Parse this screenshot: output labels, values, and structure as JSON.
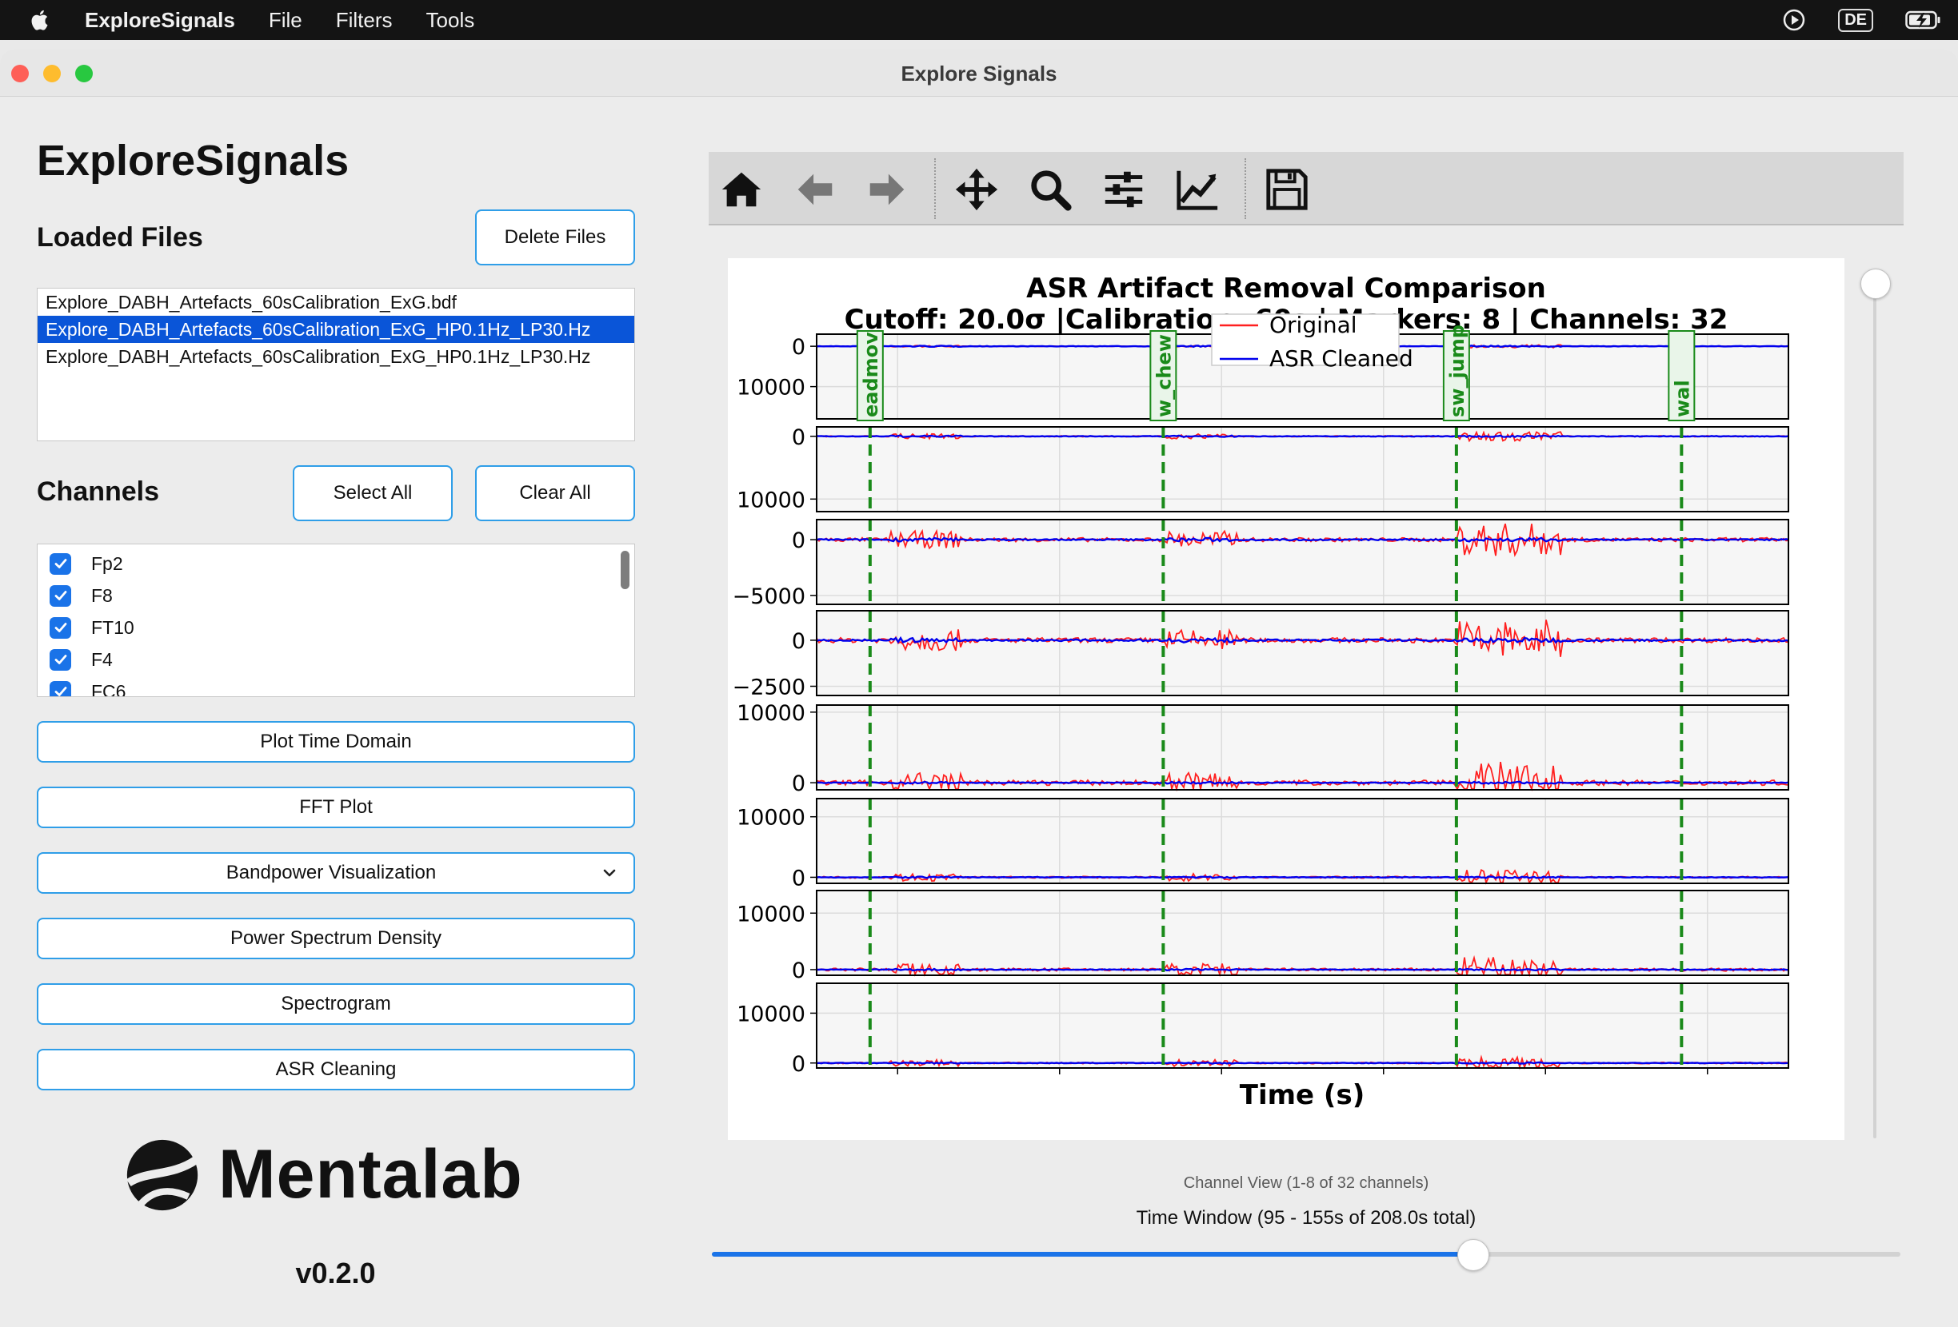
{
  "menubar": {
    "app_name": "ExploreSignals",
    "items": [
      "File",
      "Filters",
      "Tools"
    ],
    "lang": "DE"
  },
  "window": {
    "title": "Explore Signals"
  },
  "app_title": "ExploreSignals",
  "loaded_files": {
    "title": "Loaded Files",
    "delete_label": "Delete Files",
    "files": [
      "Explore_DABH_Artefacts_60sCalibration_ExG.bdf",
      "Explore_DABH_Artefacts_60sCalibration_ExG_HP0.1Hz_LP30.Hz",
      "Explore_DABH_Artefacts_60sCalibration_ExG_HP0.1Hz_LP30.Hz"
    ],
    "selected_index": 1
  },
  "channels": {
    "title": "Channels",
    "select_all_label": "Select All",
    "clear_all_label": "Clear All",
    "items": [
      "Fp2",
      "F8",
      "FT10",
      "F4",
      "FC6"
    ]
  },
  "actions": {
    "plot_time_domain": "Plot Time Domain",
    "fft_plot": "FFT Plot",
    "bandpower": "Bandpower Visualization",
    "psd": "Power Spectrum Density",
    "spectrogram": "Spectrogram",
    "asr_cleaning": "ASR Cleaning"
  },
  "brand": {
    "logo_text": "Mentalab",
    "version": "v0.2.0"
  },
  "toolbar": {
    "icons": [
      "home-icon",
      "back-arrow-icon",
      "forward-arrow-icon",
      "pan-icon",
      "zoom-icon",
      "subplots-config-icon",
      "edit-axis-icon",
      "save-icon"
    ]
  },
  "footer": {
    "channel_view": "Channel View (1-8 of 32 channels)",
    "time_window": "Time Window (95 - 155s of 208.0s total)",
    "time_slider_fraction": 0.64
  },
  "colors": {
    "accent": "#1a73e8",
    "original": "#ff2020",
    "cleaned": "#0000ee",
    "marker": "#1a8a1a"
  },
  "chart_data": {
    "type": "line",
    "title": "ASR Artifact Removal Comparison",
    "subtitle": "Cutoff: 20.0σ |Calibration: 60s | Markers: 8 | Channels: 32",
    "xlabel": "Time (s)",
    "xlim": [
      95,
      155
    ],
    "grid": true,
    "legend": {
      "placement": "top-right",
      "entries": [
        "Original",
        "ASR Cleaned"
      ]
    },
    "markers": [
      {
        "label": "eadmov",
        "x": 98.3
      },
      {
        "label": "w_chew",
        "x": 116.4
      },
      {
        "label": "sw_jump",
        "x": 134.5
      },
      {
        "label": "wal",
        "x": 148.4
      }
    ],
    "panels": [
      {
        "yticks": [
          "0",
          "10000"
        ],
        "ylim": [
          18000,
          -3000
        ],
        "tick_values": [
          0,
          10000
        ],
        "amp_orig": 150,
        "amp_clean": 150
      },
      {
        "yticks": [
          "0",
          "10000"
        ],
        "ylim": [
          12000,
          -1500
        ],
        "tick_values": [
          0,
          10000
        ],
        "amp_orig": 300,
        "amp_clean": 120
      },
      {
        "yticks": [
          "0",
          "−5000"
        ],
        "ylim": [
          -5800,
          1800
        ],
        "tick_values": [
          0,
          -5000
        ],
        "amp_orig": 600,
        "amp_clean": 160
      },
      {
        "yticks": [
          "0",
          "−2500"
        ],
        "ylim": [
          -3000,
          1600
        ],
        "tick_values": [
          0,
          -2500
        ],
        "amp_orig": 450,
        "amp_clean": 120
      },
      {
        "yticks": [
          "10000",
          "0"
        ],
        "ylim": [
          -1000,
          11000
        ],
        "tick_values": [
          10000,
          0
        ],
        "amp_orig": 1200,
        "amp_clean": 140
      },
      {
        "yticks": [
          "10000",
          "0"
        ],
        "ylim": [
          -1000,
          13000
        ],
        "tick_values": [
          10000,
          0
        ],
        "amp_orig": 500,
        "amp_clean": 120
      },
      {
        "yticks": [
          "10000",
          "0"
        ],
        "ylim": [
          -1000,
          14000
        ],
        "tick_values": [
          10000,
          0
        ],
        "amp_orig": 900,
        "amp_clean": 140
      },
      {
        "yticks": [
          "10000",
          "0"
        ],
        "ylim": [
          -1000,
          16000
        ],
        "tick_values": [
          10000,
          0
        ],
        "amp_orig": 500,
        "amp_clean": 130
      }
    ]
  }
}
